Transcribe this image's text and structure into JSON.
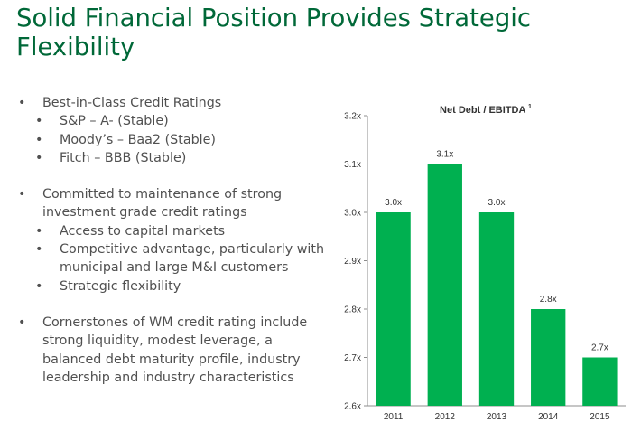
{
  "slide": {
    "title": "Solid Financial Position Provides Strategic Flexibility"
  },
  "bullets": {
    "ratings": {
      "heading": "Best-in-Class Credit Ratings",
      "items": [
        "S&P – A- (Stable)",
        "Moody’s – Baa2 (Stable)",
        "Fitch – BBB (Stable)"
      ]
    },
    "commitment": {
      "heading": "Committed to maintenance of strong investment grade credit ratings",
      "items": [
        "Access to capital markets",
        "Competitive advantage, particularly with municipal and large M&I customers",
        "Strategic flexibility"
      ]
    },
    "cornerstones": {
      "heading": "Cornerstones of WM credit rating include strong liquidity, modest leverage, a balanced debt maturity profile, industry leadership and industry characteristics"
    }
  },
  "chart_data": {
    "type": "bar",
    "title": "Net Debt / EBITDA",
    "title_superscript": "1",
    "categories": [
      "2011",
      "2012",
      "2013",
      "2014",
      "2015"
    ],
    "values": [
      3.0,
      3.1,
      3.0,
      2.8,
      2.7
    ],
    "value_labels": [
      "3.0x",
      "3.1x",
      "3.0x",
      "2.8x",
      "2.7x"
    ],
    "ylim": [
      2.6,
      3.2
    ],
    "yticks": [
      2.6,
      2.7,
      2.8,
      2.9,
      3.0,
      3.1,
      3.2
    ],
    "ytick_labels": [
      "2.6x",
      "2.7x",
      "2.8x",
      "2.9x",
      "3.0x",
      "3.1x",
      "3.2x"
    ],
    "xlabel": "",
    "ylabel": "",
    "grid": false,
    "bar_color": "#00b050"
  }
}
